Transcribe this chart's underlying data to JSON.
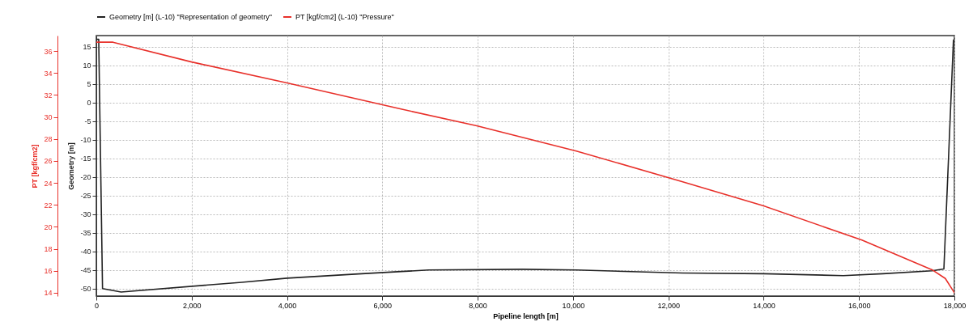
{
  "chart_data": {
    "type": "line",
    "xlabel": "Pipeline length [m]",
    "ylabel": "Geometry [m]",
    "y2label": "PT [kgf/cm2]",
    "xlim": [
      0,
      18000
    ],
    "xticks": [
      0,
      {
        "value": 2000,
        "label": "2,000"
      },
      {
        "value": 4000,
        "label": "4,000"
      },
      {
        "value": 6000,
        "label": "6,000"
      },
      {
        "value": 8000,
        "label": "8,000"
      },
      {
        "value": 10000,
        "label": "10,000"
      },
      {
        "value": 12000,
        "label": "12,000"
      },
      {
        "value": 14000,
        "label": "14,000"
      },
      {
        "value": 16000,
        "label": "16,000"
      },
      {
        "value": 18000,
        "label": "18,000"
      }
    ],
    "ylim": [
      -52,
      18
    ],
    "yticks": [
      -50,
      -45,
      -40,
      -35,
      -30,
      -25,
      -20,
      -15,
      -10,
      -5,
      0,
      5,
      10,
      15
    ],
    "y2lim": [
      13.7,
      37.4
    ],
    "y2ticks": [
      14,
      16,
      18,
      20,
      22,
      24,
      26,
      28,
      30,
      32,
      34,
      36
    ],
    "grid": true,
    "legend": "top",
    "marker": "none",
    "line_style": "solid",
    "series": [
      {
        "name": "Geometry [m] (L-10) \"Representation of geometry\"",
        "color": "#222222",
        "x": [
          0,
          50,
          130,
          520,
          3050,
          4000,
          5570,
          6400,
          6970,
          8940,
          10070,
          12300,
          14000,
          15670,
          16500,
          17530,
          17780,
          17980,
          18000
        ],
        "values": [
          17,
          17,
          -50,
          -50.9,
          -48.3,
          -47.2,
          -46,
          -45.4,
          -45,
          -44.8,
          -45,
          -45.8,
          -46,
          -46.5,
          -46,
          -45.2,
          -44.7,
          16.7,
          17
        ]
      },
      {
        "name": "PT [kgf/cm2] (L-10) \"Pressure\"",
        "color": "#e8302a",
        "axis": "y2",
        "x": [
          0,
          350,
          2000,
          4000,
          6410,
          7980,
          10070,
          12300,
          14000,
          16060,
          17530,
          17810,
          18000
        ],
        "values": [
          36.8,
          36.8,
          35,
          33.1,
          30.7,
          29.2,
          26.9,
          24.1,
          21.9,
          18.8,
          16.1,
          15.3,
          14
        ]
      }
    ]
  }
}
